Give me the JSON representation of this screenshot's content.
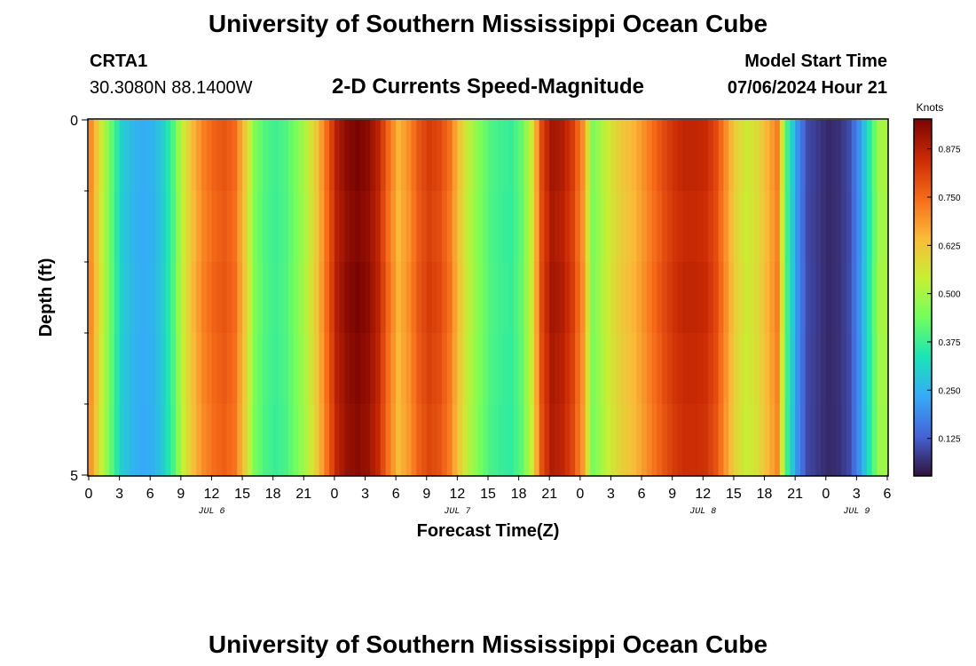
{
  "header": {
    "title": "University of Southern Mississippi Ocean Cube",
    "station": "CRTA1",
    "coordinates": "30.3080N  88.1400W",
    "subtitle": "2-D Currents Speed-Magnitude",
    "start_label": "Model Start Time",
    "start_value": "07/06/2024 Hour 21"
  },
  "footer": {
    "title": "University of Southern Mississippi Ocean Cube"
  },
  "chart_data": {
    "type": "heatmap",
    "title": "2-D Currents Speed-Magnitude",
    "xlabel": "Forecast Time(Z)",
    "ylabel": "Depth (ft)",
    "ylim": [
      0,
      5
    ],
    "y_tick_labels": [
      "0",
      "5"
    ],
    "x_tick_labels": [
      "0",
      "3",
      "6",
      "9",
      "12",
      "15",
      "18",
      "21",
      "0",
      "3",
      "6",
      "9",
      "12",
      "15",
      "18",
      "21",
      "0",
      "3",
      "6",
      "9",
      "12",
      "15",
      "18",
      "21",
      "0",
      "3",
      "6"
    ],
    "date_labels": [
      {
        "label": "JUL 6",
        "hour": 12
      },
      {
        "label": "JUL 7",
        "hour": 36
      },
      {
        "label": "JUL 8",
        "hour": 60
      },
      {
        "label": "JUL 9",
        "hour": 75
      }
    ],
    "x_hours_range": [
      0,
      78
    ],
    "colorbar": {
      "units": "Knots",
      "min": 0.03,
      "max": 0.95,
      "ticks": [
        "0.875",
        "0.750",
        "0.625",
        "0.500",
        "0.375",
        "0.250",
        "0.125"
      ],
      "colors": [
        "#30123b",
        "#4662d7",
        "#36aaf9",
        "#1ae4b6",
        "#72fe5e",
        "#c8ef34",
        "#faba39",
        "#f66b19",
        "#ca2a04",
        "#7a0403"
      ]
    },
    "speed_by_hour": [
      0.7,
      0.55,
      0.42,
      0.3,
      0.26,
      0.24,
      0.25,
      0.3,
      0.4,
      0.55,
      0.65,
      0.72,
      0.76,
      0.78,
      0.75,
      0.62,
      0.45,
      0.4,
      0.38,
      0.4,
      0.45,
      0.52,
      0.62,
      0.75,
      0.88,
      0.93,
      0.95,
      0.93,
      0.87,
      0.75,
      0.65,
      0.7,
      0.78,
      0.82,
      0.8,
      0.74,
      0.62,
      0.52,
      0.45,
      0.4,
      0.38,
      0.37,
      0.42,
      0.55,
      0.8,
      0.9,
      0.88,
      0.82,
      0.7,
      0.45,
      0.52,
      0.58,
      0.62,
      0.65,
      0.7,
      0.75,
      0.8,
      0.84,
      0.86,
      0.86,
      0.85,
      0.8,
      0.7,
      0.6,
      0.55,
      0.58,
      0.65,
      0.72,
      0.38,
      0.2,
      0.1,
      0.08,
      0.06,
      0.07,
      0.1,
      0.2,
      0.35,
      0.5
    ],
    "depth_rows": 5,
    "depth_factors": [
      1.0,
      0.99,
      1.0,
      0.99,
      0.98
    ]
  }
}
